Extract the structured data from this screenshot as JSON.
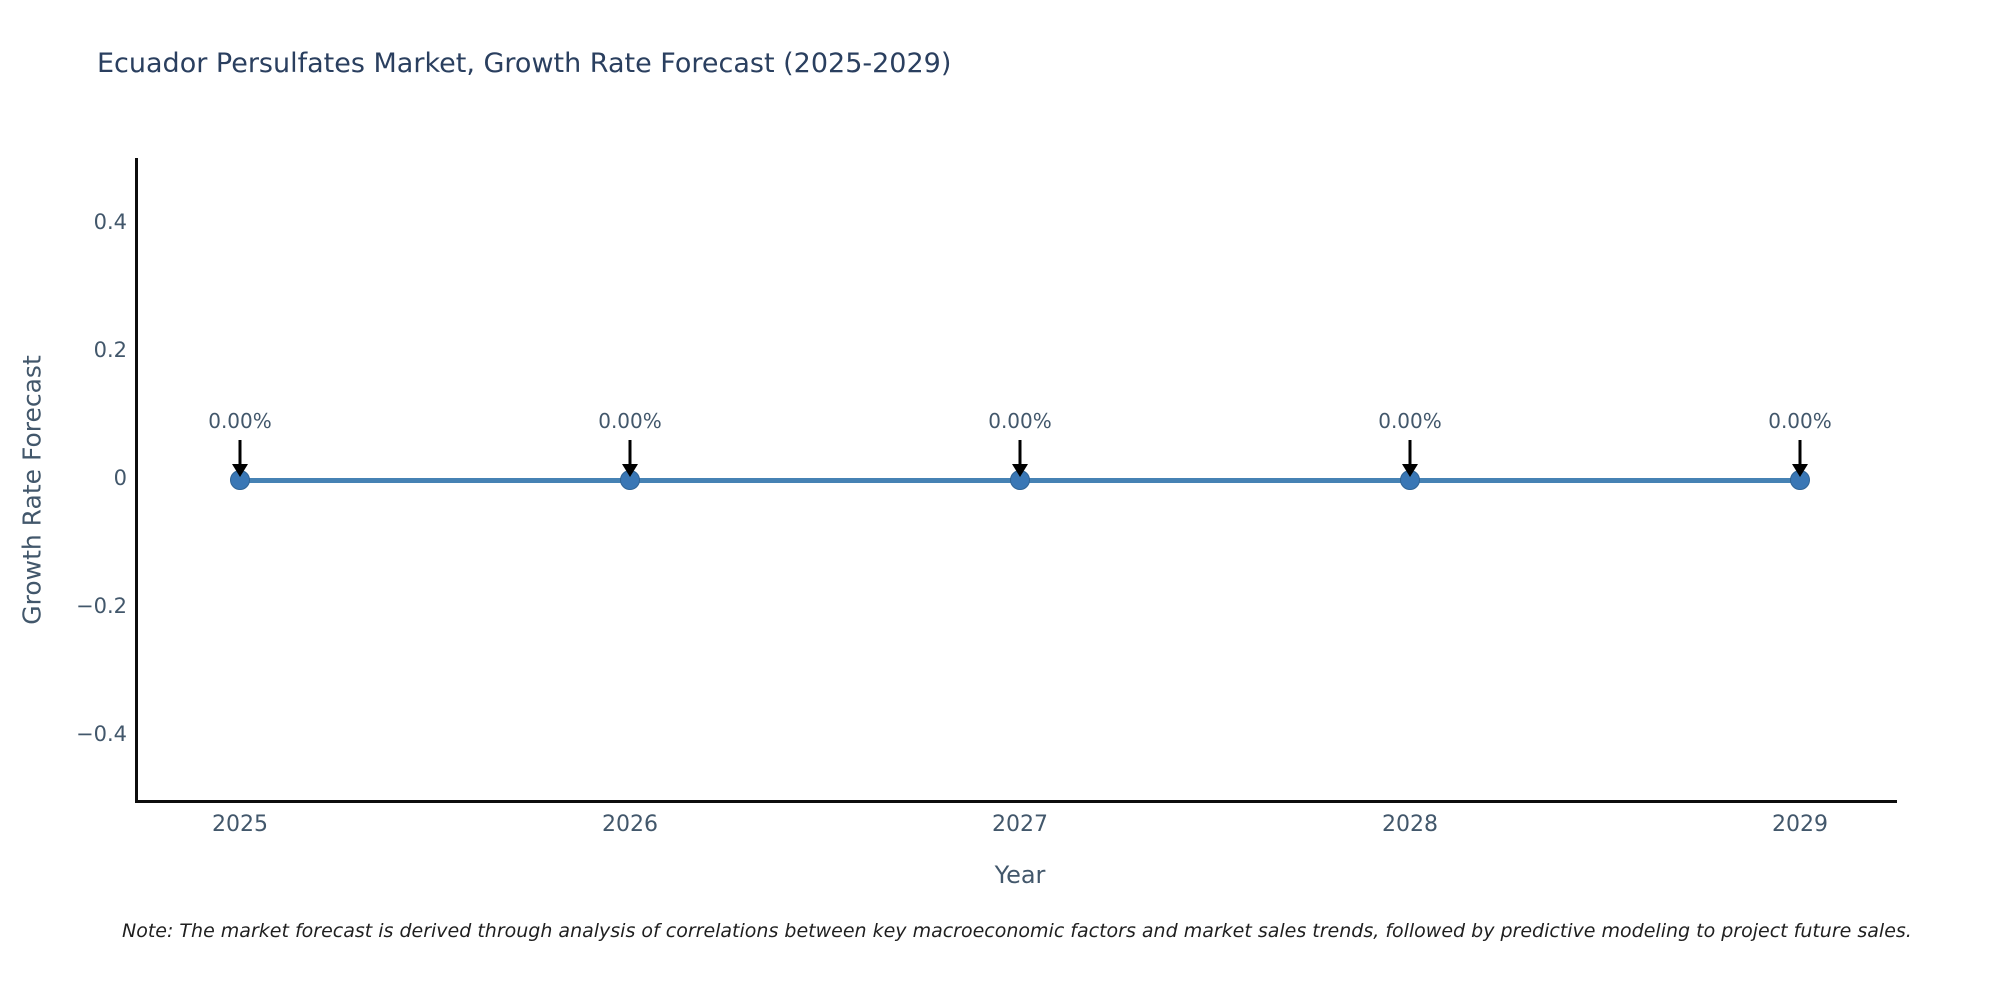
{
  "title": "Ecuador Persulfates Market, Growth Rate Forecast (2025-2029)",
  "chart_data": {
    "type": "line",
    "x": [
      2025,
      2026,
      2027,
      2028,
      2029
    ],
    "series": [
      {
        "name": "Growth Rate Forecast",
        "values": [
          0,
          0,
          0,
          0,
          0
        ]
      }
    ],
    "point_labels": [
      "0.00%",
      "0.00%",
      "0.00%",
      "0.00%",
      "0.00%"
    ],
    "title": "Ecuador Persulfates Market, Growth Rate Forecast (2025-2029)",
    "xlabel": "Year",
    "ylabel": "Growth Rate Forecast",
    "ylim": [
      -0.5,
      0.5
    ],
    "yticks": [
      0.4,
      0.2,
      0,
      -0.2,
      -0.4
    ],
    "ytick_labels": [
      "0.4",
      "0.2",
      "0",
      "−0.2",
      "−0.4"
    ],
    "xtick_labels": [
      "2025",
      "2026",
      "2027",
      "2028",
      "2029"
    ],
    "grid": false,
    "legend_position": "none",
    "line_color": "#4682b4",
    "marker_color": "#3a77b5",
    "marker_edge_color": "#2f6395",
    "arrow_color": "#000000"
  },
  "colors": {
    "title": "#2a3f5f",
    "tick": "#42576b",
    "axis": "#0d0d0d",
    "note": "#1f1f1f",
    "background": "#ffffff"
  },
  "note": "Note: The market forecast is derived through analysis of correlations between key macroeconomic factors and market sales trends, followed by predictive modeling to project future sales."
}
